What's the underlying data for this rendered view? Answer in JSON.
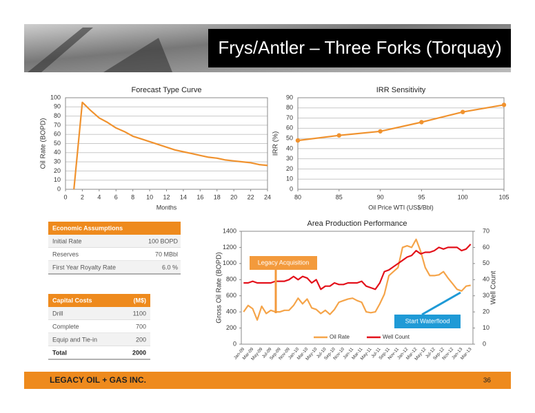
{
  "title": "Frys/Antler – Three Forks (Torquay)",
  "chart_data": [
    {
      "type": "line",
      "title": "Forecast Type Curve",
      "x_label": "Months",
      "y_label": "Oil Rate (BOPD)",
      "x": [
        1,
        2,
        3,
        4,
        5,
        6,
        7,
        8,
        9,
        10,
        11,
        12,
        13,
        14,
        15,
        16,
        17,
        18,
        19,
        20,
        21,
        22,
        23,
        24
      ],
      "values": [
        0,
        95,
        86,
        78,
        73,
        67,
        63,
        58,
        55,
        52,
        49,
        46,
        43,
        41,
        39,
        37,
        35,
        34,
        32,
        31,
        30,
        29,
        27,
        26
      ],
      "color": "#f0922e",
      "markers": false,
      "xlim": [
        0,
        24
      ],
      "xticks": [
        0,
        2,
        4,
        6,
        8,
        10,
        12,
        14,
        16,
        18,
        20,
        22,
        24
      ],
      "ylim": [
        0,
        100
      ],
      "yticks": [
        0,
        10,
        20,
        30,
        40,
        50,
        60,
        70,
        80,
        90,
        100
      ],
      "grid": true
    },
    {
      "type": "line",
      "title": "IRR Sensitivity",
      "x_label": "Oil Price WTI (US$/Bbl)",
      "y_label": "IRR (%)",
      "x": [
        80,
        85,
        90,
        95,
        100,
        105
      ],
      "values": [
        48,
        53,
        57,
        66,
        76,
        83
      ],
      "color": "#f0922e",
      "markers": true,
      "xlim": [
        80,
        105
      ],
      "xticks": [
        80,
        85,
        90,
        95,
        100,
        105
      ],
      "ylim": [
        0,
        90
      ],
      "yticks": [
        0,
        10,
        20,
        30,
        40,
        50,
        60,
        70,
        80,
        90
      ],
      "grid": true
    },
    {
      "type": "line",
      "title": "Area Production Performance",
      "y_label": "Gross Oil Rate (BOPD)",
      "y2_label": "Well Count",
      "categories": [
        "Jan-09",
        null,
        "Mar-09",
        null,
        "May-09",
        null,
        "Jul-09",
        null,
        "Sep-09",
        null,
        "Nov-09",
        null,
        "Jan-10",
        null,
        "Mar-10",
        null,
        "May-10",
        null,
        "Jul-10",
        null,
        "Sep-10",
        null,
        "Nov-10",
        null,
        "Jan-11",
        null,
        "Mar-11",
        null,
        "May-11",
        null,
        "Jul-11",
        null,
        "Sep-11",
        null,
        "Nov-11",
        null,
        "Jan-12",
        null,
        "Mar-12",
        null,
        "May-12",
        null,
        "Jul-12",
        null,
        "Sep-12",
        null,
        "Nov-12",
        null,
        "Jan-13",
        null,
        "Mar-13"
      ],
      "series": [
        {
          "name": "Oil Rate",
          "color": "#f5a449",
          "values": [
            400,
            480,
            440,
            300,
            470,
            380,
            420,
            400,
            400,
            420,
            420,
            480,
            570,
            500,
            560,
            450,
            430,
            380,
            420,
            370,
            430,
            520,
            540,
            560,
            570,
            540,
            520,
            400,
            390,
            400,
            500,
            620,
            850,
            900,
            950,
            1200,
            1220,
            1200,
            1300,
            1150,
            950,
            850,
            850,
            860,
            900,
            820,
            750,
            680,
            660,
            720,
            730
          ]
        },
        {
          "name": "Well Count",
          "color": "#e3101a",
          "axis": "y2",
          "values": [
            38,
            38,
            39,
            38,
            38,
            38,
            38,
            39,
            39,
            39,
            40,
            42,
            40,
            42,
            41,
            38,
            40,
            34,
            36,
            36,
            38,
            37,
            37,
            38,
            38,
            38,
            39,
            36,
            35,
            34,
            38,
            45,
            46,
            48,
            50,
            52,
            54,
            55,
            58,
            56,
            57,
            57,
            58,
            60,
            59,
            60,
            60,
            60,
            58,
            59,
            62
          ]
        }
      ],
      "ylim": [
        0,
        1400
      ],
      "yticks": [
        0,
        200,
        400,
        600,
        800,
        1000,
        1200,
        1400
      ],
      "y2lim": [
        0,
        70
      ],
      "y2ticks": [
        0,
        10,
        20,
        30,
        40,
        50,
        60,
        70
      ],
      "grid": false,
      "legend": "bottom",
      "annotations": [
        {
          "text": "Legacy Acquisition"
        },
        {
          "text": "Start Waterflood"
        }
      ]
    }
  ],
  "economic_assumptions": {
    "header": "Economic Assumptions",
    "rows": [
      [
        "Initial Rate",
        "100 BOPD"
      ],
      [
        "Reserves",
        "70 MBbl"
      ],
      [
        "First Year Royalty Rate",
        "6.0 %"
      ]
    ]
  },
  "capital_costs": {
    "header": [
      "Capital Costs",
      "(M$)"
    ],
    "rows": [
      [
        "Drill",
        "1100"
      ],
      [
        "Complete",
        "700"
      ],
      [
        "Equip and Tie-in",
        "200"
      ],
      [
        "Total",
        "2000"
      ]
    ]
  },
  "footer": {
    "company": "LEGACY OIL + GAS INC.",
    "page": "36"
  }
}
